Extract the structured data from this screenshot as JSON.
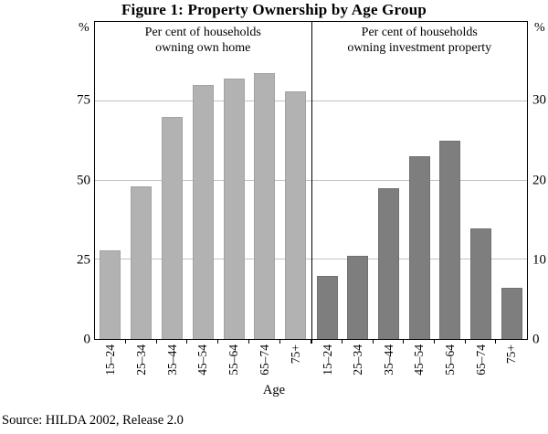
{
  "title": "Figure 1: Property Ownership by Age Group",
  "left_axis_unit": "%",
  "right_axis_unit": "%",
  "xlabel": "Age",
  "source": "Source: HILDA 2002, Release 2.0",
  "chart_data": {
    "type": "bar",
    "title": "Figure 1: Property Ownership by Age Group",
    "xlabel": "Age",
    "grid": true,
    "source": "Source: HILDA 2002, Release 2.0",
    "categories": [
      "15–24",
      "25–34",
      "35–44",
      "45–54",
      "55–64",
      "65–74",
      "75+"
    ],
    "panels": [
      {
        "name": "own-home",
        "caption": [
          "Per cent of households",
          "owning own home"
        ],
        "axis_side": "left",
        "unit": "%",
        "values": [
          28,
          48,
          70,
          80,
          82,
          84,
          78
        ],
        "ylim": [
          0,
          100
        ],
        "yticks": [
          0,
          25,
          50,
          75
        ],
        "bar_color": "#b2b2b2",
        "bar_edge": "#a2a2a2"
      },
      {
        "name": "investment-property",
        "caption": [
          "Per cent of households",
          "owning investment property"
        ],
        "axis_side": "right",
        "unit": "%",
        "values": [
          8,
          10.5,
          19,
          23,
          25,
          14,
          6.5
        ],
        "ylim": [
          0,
          40
        ],
        "yticks": [
          0,
          10,
          20,
          30
        ],
        "bar_color": "#7e7e7e",
        "bar_edge": "#707070"
      }
    ],
    "gridline_color": "#c3c3c3"
  }
}
